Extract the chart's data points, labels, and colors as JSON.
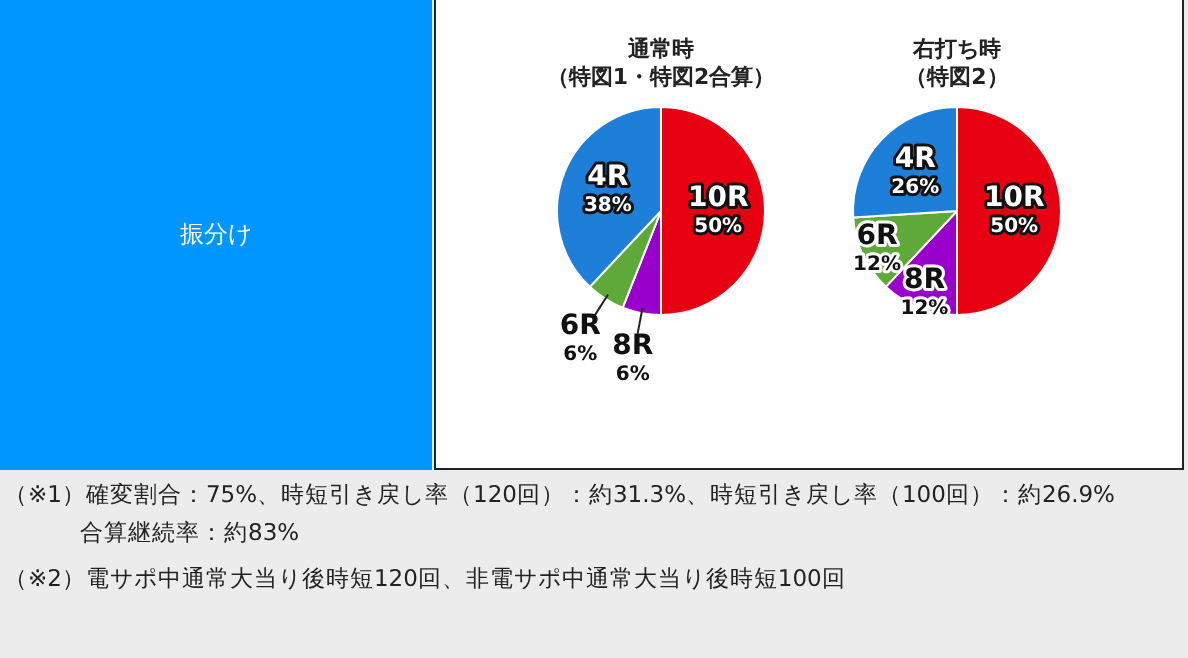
{
  "chart_data": [
    {
      "type": "other",
      "title": "振分け"
    },
    {
      "type": "pie",
      "title": "通常時",
      "subtitle": "（特図1・特図2合算）",
      "categories": [
        "10R",
        "8R",
        "6R",
        "4R"
      ],
      "values": [
        50,
        6,
        6,
        38
      ],
      "value_labels": [
        "50%",
        "6%",
        "6%",
        "38%"
      ],
      "colors": [
        "#e60012",
        "#9a00cc",
        "#5fa83a",
        "#1e7fd8"
      ],
      "legend": false
    },
    {
      "type": "pie",
      "title": "右打ち時",
      "subtitle": "（特図2）",
      "categories": [
        "10R",
        "8R",
        "6R",
        "4R"
      ],
      "values": [
        50,
        12,
        12,
        26
      ],
      "value_labels": [
        "50%",
        "12%",
        "12%",
        "26%"
      ],
      "colors": [
        "#e60012",
        "#9a00cc",
        "#5fa83a",
        "#1e7fd8"
      ],
      "legend": false
    },
    {
      "type": "other",
      "annotations": [
        "（※1）確変割合：75%、時短引き戻し率（120回）：約31.3%、時短引き戻し率（100回）：約26.9%",
        "合算継続率：約83%",
        "（※2）電サポ中通常大当り後時短120回、非電サポ中通常大当り後時短100回"
      ]
    }
  ]
}
